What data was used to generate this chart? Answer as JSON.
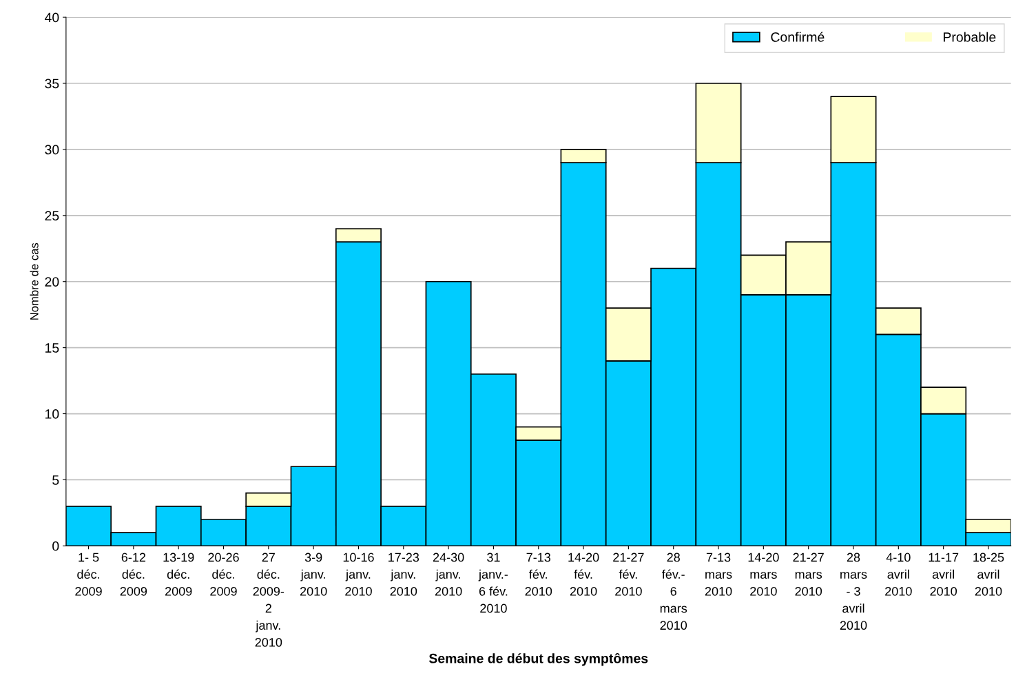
{
  "chart_data": {
    "type": "bar",
    "stacked": true,
    "xlabel": "Semaine de début des symptômes",
    "ylabel": "Nombre de cas",
    "categories": [
      "1- 5\ndéc.\n2009",
      "6-12\ndéc.\n2009",
      "13-19\ndéc.\n2009",
      "20-26\ndéc.\n2009",
      "27\ndéc.\n2009-\n2\njanv.\n2010",
      "3-9\njanv.\n2010",
      "10-16\njanv.\n2010",
      "17-23\njanv.\n2010",
      "24-30\njanv.\n2010",
      "31\njanv.-\n6 fév.\n2010",
      "7-13\nfév.\n2010",
      "14-20\nfév.\n2010",
      "21-27\nfév.\n2010",
      "28\nfév.-\n6\nmars\n2010",
      "7-13\nmars\n2010",
      "14-20\nmars\n2010",
      "21-27\nmars\n2010",
      "28\nmars\n- 3\navril\n2010",
      "4-10\navril\n2010",
      "11-17\navril\n2010",
      "18-25\navril\n2010"
    ],
    "series": [
      {
        "name": "Confirmé",
        "color": "#00ccff",
        "values": [
          3,
          1,
          3,
          2,
          3,
          6,
          23,
          3,
          20,
          13,
          8,
          29,
          14,
          21,
          29,
          19,
          19,
          29,
          16,
          10,
          1
        ]
      },
      {
        "name": "Probable",
        "color": "#ffffcc",
        "values": [
          0,
          0,
          0,
          0,
          1,
          0,
          1,
          0,
          0,
          0,
          1,
          1,
          4,
          0,
          6,
          3,
          4,
          5,
          2,
          2,
          1
        ]
      }
    ],
    "ylim": [
      0,
      40
    ],
    "yticks": [
      0,
      5,
      10,
      15,
      20,
      25,
      30,
      35,
      40
    ],
    "grid": "y",
    "legend": "top right"
  }
}
